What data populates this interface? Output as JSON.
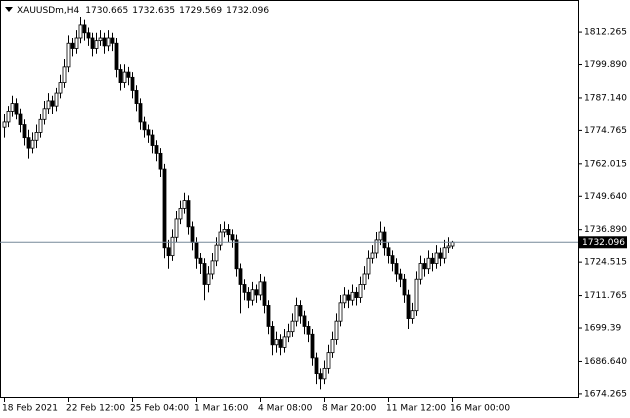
{
  "chart_data": {
    "type": "candlestick",
    "symbol": "XAUUSDm,H4",
    "header_values": [
      1730.665,
      1732.635,
      1729.569,
      1732.096
    ],
    "last_price": 1732.096,
    "bull_color": "#ffffff",
    "bear_color": "#000000",
    "wick_color": "#000000",
    "price_line_color": "#778899",
    "ylim": [
      1672.7,
      1824.5
    ],
    "yticks": [
      1674.265,
      {
        "value": 1686.64,
        "label": "1686.640"
      },
      1699.39,
      1711.765,
      1724.515,
      {
        "value": 1736.89,
        "label": "1736.890"
      },
      {
        "value": 1749.64,
        "label": "1749.640"
      },
      1762.015,
      1774.765,
      {
        "value": 1787.14,
        "label": "1787.140"
      },
      {
        "value": 1799.89,
        "label": "1799.890"
      },
      1812.265
    ],
    "categories": [
      "18 Feb 2021",
      null,
      null,
      null,
      null,
      null,
      null,
      null,
      null,
      null,
      null,
      null,
      null,
      null,
      null,
      null,
      "22 Feb 12:00",
      null,
      null,
      null,
      null,
      null,
      null,
      null,
      null,
      null,
      null,
      null,
      null,
      null,
      null,
      null,
      "25 Feb 04:00",
      null,
      null,
      null,
      null,
      null,
      null,
      null,
      null,
      null,
      null,
      null,
      null,
      null,
      null,
      null,
      "1 Mar 16:00",
      null,
      null,
      null,
      null,
      null,
      null,
      null,
      null,
      null,
      null,
      null,
      null,
      null,
      null,
      null,
      "4 Mar 08:00",
      null,
      null,
      null,
      null,
      null,
      null,
      null,
      null,
      null,
      null,
      null,
      null,
      null,
      null,
      null,
      "8 Mar 20:00",
      null,
      null,
      null,
      null,
      null,
      null,
      null,
      null,
      null,
      null,
      null,
      null,
      null,
      null,
      null,
      "11 Mar 12:00",
      null,
      null,
      null,
      null,
      null,
      null,
      null,
      null,
      null,
      null,
      null,
      null,
      null,
      null,
      null,
      "16 Mar 00:00"
    ],
    "ohlc": [
      [
        1776,
        1781,
        1772,
        1778
      ],
      [
        1778,
        1784,
        1776,
        1782
      ],
      [
        1782,
        1788,
        1780,
        1785
      ],
      [
        1785,
        1787,
        1779,
        1781
      ],
      [
        1781,
        1783,
        1774,
        1777
      ],
      [
        1777,
        1779,
        1769,
        1772
      ],
      [
        1772,
        1775,
        1764,
        1768
      ],
      [
        1768,
        1774,
        1766,
        1771
      ],
      [
        1771,
        1777,
        1768,
        1774
      ],
      [
        1774,
        1781,
        1772,
        1779
      ],
      [
        1779,
        1786,
        1777,
        1783
      ],
      [
        1783,
        1789,
        1781,
        1786
      ],
      [
        1786,
        1788,
        1781,
        1784
      ],
      [
        1784,
        1791,
        1782,
        1789
      ],
      [
        1789,
        1796,
        1787,
        1793
      ],
      [
        1793,
        1802,
        1791,
        1799
      ],
      [
        1799,
        1811,
        1797,
        1808
      ],
      [
        1808,
        1810,
        1803,
        1806
      ],
      [
        1806,
        1813,
        1804,
        1810
      ],
      [
        1810,
        1818,
        1808,
        1815
      ],
      [
        1815,
        1817,
        1809,
        1812
      ],
      [
        1812,
        1814,
        1807,
        1810
      ],
      [
        1810,
        1812,
        1803,
        1806
      ],
      [
        1806,
        1812,
        1804,
        1809
      ],
      [
        1809,
        1813,
        1807,
        1810
      ],
      [
        1810,
        1812,
        1804,
        1807
      ],
      [
        1807,
        1813,
        1805,
        1810
      ],
      [
        1810,
        1812,
        1805,
        1808
      ],
      [
        1808,
        1810,
        1795,
        1798
      ],
      [
        1798,
        1800,
        1790,
        1793
      ],
      [
        1793,
        1800,
        1791,
        1797
      ],
      [
        1797,
        1799,
        1792,
        1795
      ],
      [
        1795,
        1797,
        1787,
        1790
      ],
      [
        1790,
        1792,
        1782,
        1785
      ],
      [
        1785,
        1787,
        1775,
        1778
      ],
      [
        1778,
        1780,
        1772,
        1775
      ],
      [
        1775,
        1777,
        1770,
        1773
      ],
      [
        1773,
        1775,
        1766,
        1769
      ],
      [
        1769,
        1771,
        1763,
        1766
      ],
      [
        1766,
        1768,
        1757,
        1760
      ],
      [
        1760,
        1762,
        1726,
        1730
      ],
      [
        1730,
        1733,
        1722,
        1727
      ],
      [
        1727,
        1737,
        1725,
        1734
      ],
      [
        1734,
        1744,
        1732,
        1741
      ],
      [
        1741,
        1748,
        1739,
        1745
      ],
      [
        1745,
        1751,
        1743,
        1748
      ],
      [
        1748,
        1750,
        1735,
        1738
      ],
      [
        1738,
        1740,
        1729,
        1732
      ],
      [
        1732,
        1734,
        1722,
        1726
      ],
      [
        1726,
        1728,
        1720,
        1724
      ],
      [
        1724,
        1726,
        1710,
        1716
      ],
      [
        1716,
        1723,
        1713,
        1720
      ],
      [
        1720,
        1728,
        1718,
        1725
      ],
      [
        1725,
        1734,
        1723,
        1731
      ],
      [
        1731,
        1739,
        1729,
        1736
      ],
      [
        1736,
        1740,
        1734,
        1737
      ],
      [
        1737,
        1739,
        1732,
        1735
      ],
      [
        1735,
        1737,
        1730,
        1733
      ],
      [
        1733,
        1735,
        1719,
        1722
      ],
      [
        1722,
        1724,
        1705,
        1716
      ],
      [
        1716,
        1718,
        1710,
        1713
      ],
      [
        1713,
        1715,
        1707,
        1710
      ],
      [
        1710,
        1717,
        1708,
        1714
      ],
      [
        1714,
        1716,
        1709,
        1712
      ],
      [
        1712,
        1720,
        1710,
        1717
      ],
      [
        1717,
        1719,
        1705,
        1708
      ],
      [
        1708,
        1710,
        1697,
        1700
      ],
      [
        1700,
        1702,
        1689,
        1693
      ],
      [
        1693,
        1698,
        1690,
        1695
      ],
      [
        1695,
        1697,
        1689,
        1692
      ],
      [
        1692,
        1699,
        1690,
        1696
      ],
      [
        1696,
        1701,
        1694,
        1698
      ],
      [
        1698,
        1705,
        1696,
        1702
      ],
      [
        1702,
        1711,
        1700,
        1708
      ],
      [
        1708,
        1710,
        1701,
        1704
      ],
      [
        1704,
        1706,
        1697,
        1700
      ],
      [
        1700,
        1702,
        1694,
        1697
      ],
      [
        1697,
        1699,
        1685,
        1688
      ],
      [
        1688,
        1690,
        1678,
        1682
      ],
      [
        1682,
        1684,
        1676,
        1680
      ],
      [
        1680,
        1687,
        1678,
        1684
      ],
      [
        1684,
        1693,
        1682,
        1690
      ],
      [
        1690,
        1698,
        1688,
        1695
      ],
      [
        1695,
        1705,
        1693,
        1702
      ],
      [
        1702,
        1712,
        1700,
        1709
      ],
      [
        1709,
        1715,
        1707,
        1712
      ],
      [
        1712,
        1714,
        1707,
        1710
      ],
      [
        1710,
        1716,
        1708,
        1713
      ],
      [
        1713,
        1715,
        1708,
        1711
      ],
      [
        1711,
        1719,
        1709,
        1716
      ],
      [
        1716,
        1723,
        1714,
        1720
      ],
      [
        1720,
        1729,
        1718,
        1726
      ],
      [
        1726,
        1731,
        1724,
        1728
      ],
      [
        1728,
        1736,
        1726,
        1733
      ],
      [
        1733,
        1740,
        1731,
        1736
      ],
      [
        1736,
        1738,
        1727,
        1730
      ],
      [
        1730,
        1732,
        1724,
        1727
      ],
      [
        1727,
        1729,
        1721,
        1724
      ],
      [
        1724,
        1726,
        1717,
        1720
      ],
      [
        1720,
        1722,
        1715,
        1718
      ],
      [
        1718,
        1720,
        1709,
        1712
      ],
      [
        1712,
        1714,
        1699,
        1703
      ],
      [
        1703,
        1709,
        1701,
        1706
      ],
      [
        1706,
        1721,
        1704,
        1718
      ],
      [
        1718,
        1727,
        1716,
        1724
      ],
      [
        1724,
        1726,
        1719,
        1722
      ],
      [
        1722,
        1729,
        1720,
        1726
      ],
      [
        1726,
        1728,
        1721,
        1724
      ],
      [
        1724,
        1731,
        1722,
        1728
      ],
      [
        1728,
        1730,
        1723,
        1726
      ],
      [
        1726,
        1733,
        1724,
        1730
      ],
      [
        1730,
        1734,
        1728,
        1730.665
      ],
      [
        1730.665,
        1732.635,
        1729.569,
        1732.096
      ]
    ]
  }
}
